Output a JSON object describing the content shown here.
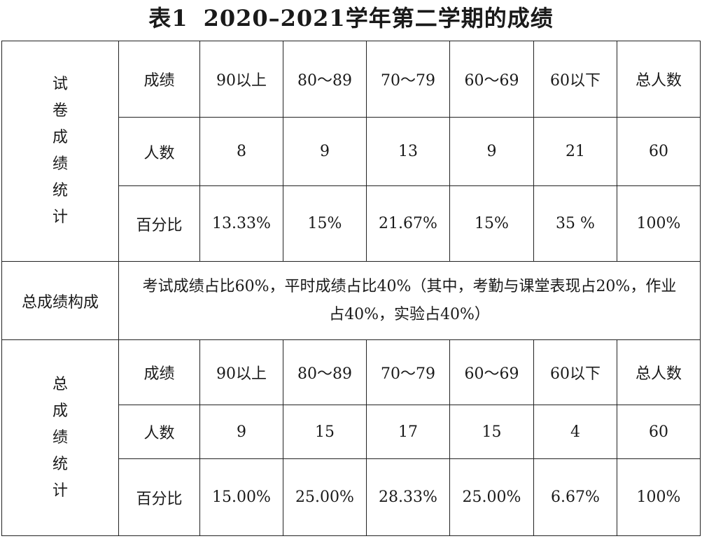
{
  "title": {
    "num": "表1",
    "text": "2020–2021学年第二学期的成绩"
  },
  "section1": {
    "label_chars": [
      "试",
      "卷",
      "成",
      "绩",
      "统",
      "计"
    ],
    "header": [
      "成绩",
      "90以上",
      "80～89",
      "70～79",
      "60～69",
      "60以下",
      "总人数"
    ],
    "count_row": [
      "人数",
      "8",
      "9",
      "13",
      "9",
      "21",
      "60"
    ],
    "percent_row": [
      "百分比",
      "13.33%",
      "15%",
      "21.67%",
      "15%",
      "35 %",
      "100%"
    ]
  },
  "composition": {
    "label": "总成绩构成",
    "line1": "考试成绩占比60%，平时成绩占比40%（其中，考勤与课堂表现占20%，作业",
    "line2": "占40%，实验占40%）"
  },
  "section2": {
    "label_chars": [
      "总",
      "成",
      "绩",
      "统",
      "计"
    ],
    "header": [
      "成绩",
      "90以上",
      "80～89",
      "70～79",
      "60～69",
      "60以下",
      "总人数"
    ],
    "count_row": [
      "人数",
      "9",
      "15",
      "17",
      "15",
      "4",
      "60"
    ],
    "percent_row": [
      "百分比",
      "15.00%",
      "25.00%",
      "28.33%",
      "25.00%",
      "6.67%",
      "100%"
    ]
  }
}
